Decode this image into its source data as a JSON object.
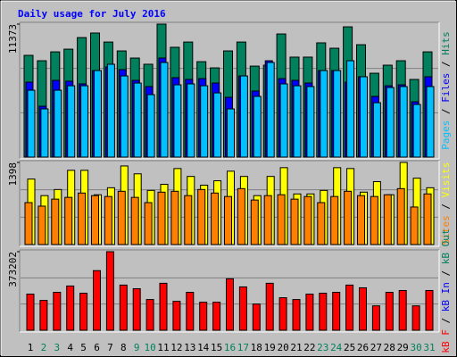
{
  "chart_data": [
    {
      "type": "bar",
      "title": "Daily usage for July 2016",
      "separator": " / ",
      "ylim": [
        0,
        11373
      ],
      "yticks": [
        11373
      ],
      "series": [
        {
          "name": "Hits",
          "color": "#00805c",
          "values": [
            8700,
            8240,
            9000,
            9230,
            10220,
            10610,
            9840,
            9080,
            8470,
            7940,
            11373,
            9390,
            9840,
            8160,
            7630,
            9080,
            9840,
            7780,
            7860,
            10530,
            8550,
            8550,
            9770,
            9310,
            11140,
            9610,
            7170,
            7860,
            8240,
            6640,
            9000
          ]
        },
        {
          "name": "Files",
          "color": "#0000ff",
          "values": [
            6410,
            4350,
            6560,
            6490,
            6260,
            7400,
            7710,
            7480,
            6560,
            6030,
            8470,
            6790,
            6640,
            6710,
            6330,
            5110,
            6940,
            5650,
            8240,
            6710,
            6560,
            6330,
            7400,
            7400,
            6410,
            6870,
            5190,
            6100,
            6180,
            4730,
            6870
          ]
        },
        {
          "name": "Pages",
          "color": "#00c0ff",
          "values": [
            5720,
            4120,
            5720,
            6100,
            6100,
            7400,
            7940,
            6940,
            6330,
            5340,
            8090,
            6180,
            6260,
            6100,
            5490,
            4120,
            6940,
            5190,
            8090,
            6260,
            6100,
            6030,
            7400,
            7400,
            8240,
            6870,
            4650,
            5950,
            6030,
            4500,
            6030
          ]
        }
      ]
    },
    {
      "type": "bar",
      "separator": " / ",
      "ylim": [
        0,
        1398
      ],
      "yticks": [
        1398
      ],
      "series": [
        {
          "name": "Visits",
          "color": "#ffff00",
          "values": [
            1115,
            833,
            937,
            1264,
            1264,
            848,
            967,
            1338,
            1204,
            922,
            1026,
            1294,
            1160,
            1011,
            1086,
            1249,
            1160,
            833,
            1160,
            1309,
            862,
            862,
            922,
            1309,
            1294,
            892,
            1071,
            848,
            1398,
            1130,
            967
          ]
        },
        {
          "name": "Sites",
          "color": "#ff8000",
          "values": [
            714,
            654,
            773,
            803,
            877,
            833,
            818,
            907,
            803,
            714,
            892,
            907,
            833,
            937,
            877,
            818,
            952,
            758,
            833,
            848,
            773,
            818,
            714,
            818,
            907,
            833,
            818,
            848,
            952,
            639,
            862
          ]
        }
      ]
    },
    {
      "type": "bar",
      "separator": " / ",
      "ylim": [
        0,
        373202
      ],
      "yticks": [
        373202
      ],
      "categories": [
        "1",
        "2",
        "3",
        "4",
        "5",
        "6",
        "7",
        "8",
        "9",
        "10",
        "11",
        "12",
        "13",
        "14",
        "15",
        "16",
        "17",
        "18",
        "19",
        "20",
        "21",
        "22",
        "23",
        "24",
        "25",
        "26",
        "27",
        "28",
        "29",
        "30",
        "31"
      ],
      "category_colors": [
        "#000000",
        "#00805c",
        "#00805c",
        "#000000",
        "#000000",
        "#000000",
        "#000000",
        "#000000",
        "#00805c",
        "#00805c",
        "#000000",
        "#000000",
        "#000000",
        "#000000",
        "#000000",
        "#00805c",
        "#00805c",
        "#000000",
        "#000000",
        "#000000",
        "#000000",
        "#000000",
        "#00805c",
        "#00805c",
        "#000000",
        "#000000",
        "#000000",
        "#000000",
        "#000000",
        "#00805c",
        "#00805c"
      ],
      "series": [
        {
          "name": "kB Out",
          "color": "#00805c"
        },
        {
          "name": "kB In",
          "color": "#0000ff"
        },
        {
          "name": "kB F",
          "color": "#ff0000",
          "values": [
            171600,
            141600,
            180200,
            210200,
            175900,
            283100,
            373202,
            214500,
            197300,
            145900,
            223100,
            137300,
            180200,
            133000,
            133000,
            244500,
            205900,
            124400,
            223100,
            154400,
            145900,
            171600,
            175900,
            180200,
            214500,
            201600,
            115800,
            180200,
            188800,
            115800,
            188800
          ]
        }
      ]
    }
  ]
}
